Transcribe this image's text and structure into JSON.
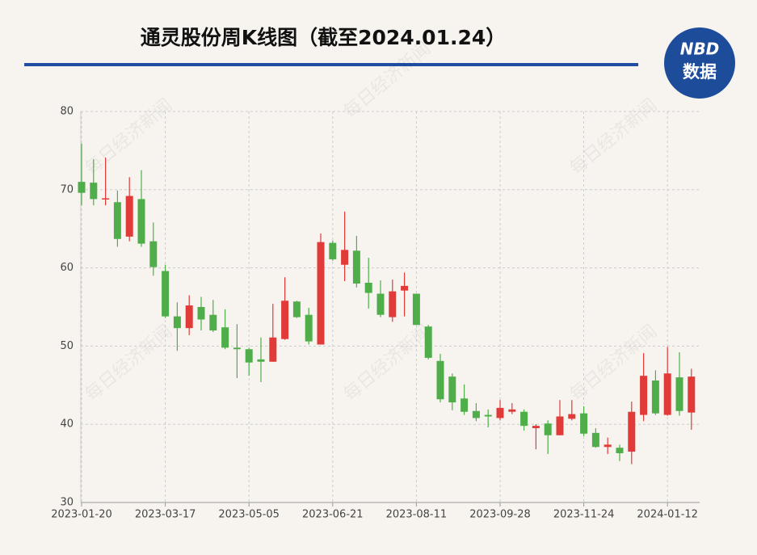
{
  "chart_data": {
    "type": "candlestick",
    "title": "通灵股份周K线图（截至2024.01.24）",
    "logo": {
      "top": "NBD",
      "bottom": "数据"
    },
    "watermark": "每日经济新闻",
    "categories": [
      "2023-01-20",
      null,
      null,
      null,
      null,
      null,
      null,
      "2023-03-17",
      null,
      null,
      null,
      null,
      null,
      null,
      "2023-05-05",
      null,
      null,
      null,
      null,
      null,
      null,
      "2023-06-21",
      null,
      null,
      null,
      null,
      null,
      null,
      "2023-08-11",
      null,
      null,
      null,
      null,
      null,
      null,
      "2023-09-28",
      null,
      null,
      null,
      null,
      null,
      null,
      "2023-11-24",
      null,
      null,
      null,
      null,
      null,
      null,
      "2024-01-12",
      null,
      null
    ],
    "open": [
      71.0,
      70.9,
      68.8,
      68.4,
      64.0,
      68.8,
      63.4,
      59.6,
      53.8,
      52.3,
      55.0,
      54.0,
      52.4,
      49.8,
      49.6,
      48.3,
      48.0,
      50.9,
      55.7,
      54.0,
      50.2,
      63.2,
      60.4,
      62.2,
      58.1,
      56.7,
      53.7,
      57.1,
      56.7,
      52.5,
      48.1,
      46.1,
      43.3,
      41.7,
      41.2,
      40.8,
      41.6,
      41.6,
      39.5,
      40.1,
      38.6,
      40.7,
      41.4,
      38.9,
      37.1,
      37.0,
      36.5,
      41.2,
      45.6,
      41.2,
      46.0,
      41.5
    ],
    "high": [
      75.9,
      73.9,
      74.1,
      69.9,
      71.6,
      72.5,
      65.8,
      60.4,
      55.6,
      56.5,
      56.3,
      55.9,
      54.7,
      52.8,
      49.8,
      51.1,
      55.4,
      58.8,
      55.8,
      54.9,
      64.4,
      63.5,
      67.2,
      64.1,
      61.3,
      58.4,
      58.5,
      59.4,
      56.7,
      52.7,
      49.0,
      46.5,
      45.1,
      42.7,
      41.9,
      43.1,
      42.7,
      41.9,
      40.0,
      40.5,
      43.1,
      43.1,
      42.3,
      39.5,
      38.3,
      37.4,
      42.9,
      49.1,
      46.9,
      49.9,
      49.2,
      47.1
    ],
    "low": [
      68.0,
      68.0,
      68.0,
      62.7,
      63.4,
      62.7,
      59.0,
      53.6,
      49.4,
      51.4,
      52.0,
      51.8,
      49.6,
      45.9,
      46.2,
      45.4,
      48.0,
      50.8,
      53.6,
      50.2,
      50.2,
      60.9,
      58.3,
      57.5,
      54.8,
      53.7,
      53.1,
      53.8,
      52.7,
      48.3,
      42.8,
      41.8,
      41.2,
      40.4,
      39.6,
      40.5,
      41.3,
      39.2,
      36.8,
      36.2,
      38.6,
      40.5,
      38.5,
      37.0,
      36.2,
      35.3,
      34.9,
      40.4,
      41.2,
      41.1,
      41.1,
      39.3
    ],
    "close": [
      69.6,
      68.8,
      68.9,
      63.7,
      69.2,
      63.1,
      60.1,
      53.8,
      52.3,
      55.2,
      53.4,
      52.0,
      49.8,
      49.6,
      47.9,
      48.0,
      51.1,
      55.8,
      53.7,
      50.6,
      63.3,
      61.1,
      62.3,
      58.0,
      56.8,
      54.0,
      57.0,
      57.7,
      52.7,
      48.5,
      43.2,
      42.8,
      41.6,
      40.8,
      41.0,
      42.1,
      41.9,
      39.8,
      39.8,
      38.6,
      41.0,
      41.3,
      38.8,
      37.1,
      37.4,
      36.3,
      41.6,
      46.2,
      41.4,
      46.5,
      41.7,
      46.1
    ],
    "up_color": "#e03b38",
    "down_color": "#4fae4a",
    "ylim": [
      30,
      80
    ],
    "yticks": [
      30,
      40,
      50,
      60,
      70,
      80
    ],
    "grid": true
  }
}
